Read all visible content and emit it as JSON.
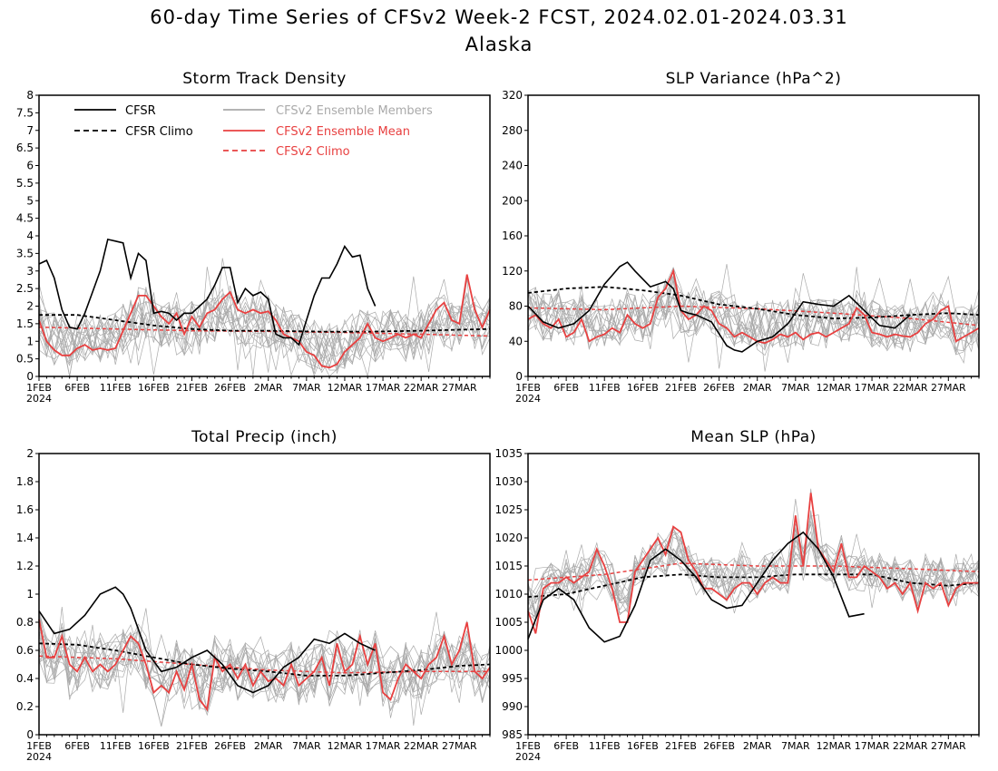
{
  "title": "60-day Time Series of CFSv2 Week-2 FCST, 2024.02.01-2024.03.31",
  "subtitle": "Alaska",
  "legend": {
    "cfsr": "CFSR",
    "cfsr_climo": "CFSR Climo",
    "members": "CFSv2 Ensemble Members",
    "ens_mean": "CFSv2 Ensemble Mean",
    "cfsv2_climo": "CFSv2 Climo"
  },
  "colors": {
    "cfsr": "#000000",
    "ens_mean": "#e84040",
    "members": "#aaaaaa",
    "frame": "#000000"
  },
  "x_tick_labels": [
    "1FEB",
    "6FEB",
    "11FEB",
    "16FEB",
    "21FEB",
    "26FEB",
    "2MAR",
    "7MAR",
    "12MAR",
    "17MAR",
    "22MAR",
    "27MAR"
  ],
  "x_year_label": "2024",
  "chart_data": [
    {
      "type": "line",
      "title": "Storm Track Density",
      "x_days": 60,
      "ylim": [
        0,
        8
      ],
      "yticks": [
        "0",
        "0.5",
        "1",
        "1.5",
        "2",
        "2.5",
        "3",
        "3.5",
        "4",
        "4.5",
        "5",
        "5.5",
        "6",
        "6.5",
        "7",
        "7.5",
        "8"
      ],
      "cfsr": {
        "x": [
          0,
          1,
          2,
          3,
          4,
          5,
          6,
          7,
          8,
          9,
          10,
          11,
          12,
          13,
          14,
          15,
          16,
          17,
          18,
          19,
          20,
          21,
          22,
          23,
          24,
          25,
          26,
          27,
          28,
          29,
          30,
          31,
          32,
          33,
          34,
          35,
          36,
          37,
          38,
          39,
          40,
          41,
          42,
          43,
          44
        ],
        "y": [
          3.2,
          3.3,
          2.8,
          1.9,
          1.4,
          1.35,
          1.8,
          2.4,
          3.0,
          3.9,
          3.85,
          3.8,
          2.8,
          3.5,
          3.3,
          1.8,
          1.85,
          1.8,
          1.6,
          1.8,
          1.8,
          2.0,
          2.2,
          2.6,
          3.1,
          3.1,
          2.1,
          2.5,
          2.3,
          2.4,
          2.2,
          1.2,
          1.1,
          1.1,
          0.9,
          1.6,
          2.3,
          2.8,
          2.8,
          3.2,
          3.7,
          3.4,
          3.45,
          2.5,
          2.0
        ]
      },
      "cfsr_climo": {
        "x": [
          0,
          5,
          10,
          15,
          20,
          25,
          30,
          35,
          40,
          45,
          50,
          55,
          59
        ],
        "y": [
          1.75,
          1.75,
          1.6,
          1.45,
          1.35,
          1.3,
          1.3,
          1.28,
          1.27,
          1.28,
          1.3,
          1.33,
          1.35
        ]
      },
      "ens_mean": {
        "y": [
          1.6,
          1.0,
          0.75,
          0.6,
          0.6,
          0.8,
          0.9,
          0.75,
          0.8,
          0.75,
          0.8,
          1.3,
          1.8,
          2.3,
          2.3,
          2.0,
          1.7,
          1.5,
          1.8,
          1.2,
          1.7,
          1.4,
          1.8,
          1.9,
          2.2,
          2.4,
          1.9,
          1.8,
          1.9,
          1.8,
          1.85,
          1.6,
          1.2,
          1.1,
          1.0,
          0.7,
          0.6,
          0.3,
          0.25,
          0.35,
          0.7,
          0.9,
          1.1,
          1.5,
          1.1,
          1.0,
          1.1,
          1.2,
          1.1,
          1.2,
          1.1,
          1.5,
          1.9,
          2.1,
          1.6,
          1.5,
          2.9,
          1.9,
          1.4,
          1.9
        ]
      },
      "cfsv2_climo": {
        "x": [
          0,
          10,
          20,
          30,
          40,
          50,
          59
        ],
        "y": [
          1.4,
          1.35,
          1.3,
          1.28,
          1.25,
          1.2,
          1.15
        ]
      },
      "members": {
        "count": 16,
        "spread": 0.75,
        "seed": 11
      }
    },
    {
      "type": "line",
      "title": "SLP Variance (hPa^2)",
      "x_days": 60,
      "ylim": [
        0,
        320
      ],
      "yticks": [
        "0",
        "40",
        "80",
        "120",
        "160",
        "200",
        "240",
        "280",
        "320"
      ],
      "cfsr": {
        "x": [
          0,
          2,
          4,
          6,
          8,
          10,
          11,
          12,
          13,
          14,
          16,
          18,
          19,
          20,
          21,
          22,
          24,
          26,
          27,
          28,
          30,
          32,
          34,
          36,
          38,
          40,
          42,
          44,
          46,
          48,
          50
        ],
        "y": [
          80,
          62,
          55,
          60,
          75,
          105,
          115,
          125,
          130,
          120,
          102,
          108,
          100,
          75,
          72,
          70,
          62,
          35,
          30,
          28,
          40,
          45,
          60,
          85,
          82,
          80,
          92,
          75,
          58,
          55,
          70
        ]
      },
      "cfsr_climo": {
        "x": [
          0,
          5,
          10,
          15,
          20,
          25,
          30,
          35,
          40,
          45,
          50,
          55,
          59
        ],
        "y": [
          95,
          100,
          102,
          98,
          92,
          82,
          77,
          70,
          66,
          67,
          70,
          72,
          70
        ]
      },
      "ens_mean": {
        "y": [
          65,
          70,
          60,
          55,
          65,
          45,
          50,
          65,
          40,
          45,
          48,
          55,
          50,
          70,
          60,
          55,
          60,
          90,
          100,
          120,
          75,
          65,
          70,
          80,
          75,
          60,
          55,
          45,
          50,
          45,
          40,
          38,
          42,
          48,
          45,
          50,
          42,
          48,
          50,
          45,
          50,
          55,
          60,
          78,
          70,
          50,
          48,
          45,
          48,
          46,
          45,
          50,
          60,
          65,
          75,
          80,
          40,
          45,
          50,
          55
        ]
      },
      "cfsv2_climo": {
        "x": [
          0,
          10,
          20,
          30,
          40,
          50,
          59
        ],
        "y": [
          78,
          76,
          80,
          77,
          72,
          66,
          58
        ]
      },
      "members": {
        "count": 16,
        "spread": 28,
        "seed": 23
      }
    },
    {
      "type": "line",
      "title": "Total Precip (inch)",
      "x_days": 60,
      "ylim": [
        0,
        2
      ],
      "yticks": [
        "0",
        "0.2",
        "0.4",
        "0.6",
        "0.8",
        "1",
        "1.2",
        "1.4",
        "1.6",
        "1.8",
        "2"
      ],
      "cfsr": {
        "x": [
          0,
          2,
          4,
          6,
          8,
          10,
          11,
          12,
          14,
          16,
          18,
          20,
          22,
          24,
          26,
          28,
          30,
          32,
          34,
          36,
          38,
          40,
          42,
          44
        ],
        "y": [
          0.88,
          0.72,
          0.75,
          0.85,
          1.0,
          1.05,
          1.0,
          0.9,
          0.6,
          0.45,
          0.48,
          0.55,
          0.6,
          0.5,
          0.35,
          0.3,
          0.35,
          0.48,
          0.55,
          0.68,
          0.65,
          0.72,
          0.65,
          0.6
        ]
      },
      "cfsr_climo": {
        "x": [
          0,
          5,
          10,
          15,
          20,
          25,
          30,
          35,
          40,
          45,
          50,
          55,
          59
        ],
        "y": [
          0.65,
          0.64,
          0.6,
          0.55,
          0.5,
          0.47,
          0.45,
          0.42,
          0.42,
          0.44,
          0.46,
          0.49,
          0.5
        ]
      },
      "ens_mean": {
        "y": [
          0.82,
          0.55,
          0.55,
          0.7,
          0.5,
          0.45,
          0.55,
          0.45,
          0.5,
          0.45,
          0.5,
          0.6,
          0.7,
          0.65,
          0.5,
          0.3,
          0.35,
          0.3,
          0.45,
          0.32,
          0.5,
          0.25,
          0.18,
          0.55,
          0.45,
          0.5,
          0.4,
          0.5,
          0.35,
          0.45,
          0.38,
          0.4,
          0.35,
          0.5,
          0.35,
          0.4,
          0.45,
          0.55,
          0.35,
          0.65,
          0.45,
          0.5,
          0.7,
          0.5,
          0.65,
          0.3,
          0.25,
          0.4,
          0.5,
          0.45,
          0.4,
          0.5,
          0.55,
          0.7,
          0.5,
          0.6,
          0.8,
          0.45,
          0.4,
          0.48
        ]
      },
      "cfsv2_climo": {
        "x": [
          0,
          10,
          20,
          30,
          40,
          50,
          59
        ],
        "y": [
          0.56,
          0.54,
          0.5,
          0.46,
          0.44,
          0.45,
          0.45
        ]
      },
      "members": {
        "count": 16,
        "spread": 0.2,
        "seed": 37
      }
    },
    {
      "type": "line",
      "title": "Mean SLP (hPa)",
      "x_days": 60,
      "ylim": [
        985,
        1035
      ],
      "yticks": [
        "985",
        "990",
        "995",
        "1000",
        "1005",
        "1010",
        "1015",
        "1020",
        "1025",
        "1030",
        "1035"
      ],
      "cfsr": {
        "x": [
          0,
          2,
          4,
          6,
          8,
          10,
          11,
          12,
          14,
          16,
          18,
          20,
          22,
          24,
          26,
          28,
          30,
          32,
          34,
          36,
          38,
          40,
          42,
          44
        ],
        "y": [
          1002,
          1009,
          1011,
          1009,
          1004,
          1001.5,
          1002,
          1002.5,
          1008,
          1016,
          1018,
          1016,
          1013,
          1009,
          1007.5,
          1008,
          1012,
          1016,
          1019,
          1021,
          1018,
          1013,
          1006,
          1006.5
        ]
      },
      "cfsr_climo": {
        "x": [
          0,
          5,
          10,
          15,
          20,
          25,
          30,
          35,
          40,
          45,
          50,
          55,
          59
        ],
        "y": [
          1009.5,
          1010,
          1011.5,
          1013,
          1013.5,
          1013,
          1013,
          1013.5,
          1013.5,
          1013.5,
          1012,
          1011.5,
          1012
        ]
      },
      "ens_mean": {
        "y": [
          1007,
          1003,
          1011,
          1012,
          1012,
          1013,
          1012,
          1013,
          1014,
          1018,
          1015,
          1011,
          1005,
          1005,
          1014,
          1016,
          1018,
          1020,
          1017,
          1022,
          1021,
          1016,
          1014,
          1011,
          1011,
          1010,
          1009,
          1011,
          1012,
          1012,
          1010,
          1012,
          1013,
          1012,
          1012,
          1024,
          1015,
          1028,
          1018,
          1016,
          1014,
          1019,
          1013,
          1013,
          1015,
          1014,
          1013,
          1011,
          1012,
          1010,
          1012,
          1007,
          1012,
          1011,
          1012,
          1008,
          1011,
          1012,
          1012,
          1012
        ]
      },
      "cfsv2_climo": {
        "x": [
          0,
          10,
          20,
          30,
          40,
          50,
          59
        ],
        "y": [
          1012.5,
          1013.5,
          1015.5,
          1015,
          1015,
          1014.5,
          1014
        ]
      },
      "members": {
        "count": 16,
        "spread": 3.5,
        "seed": 53
      }
    }
  ]
}
